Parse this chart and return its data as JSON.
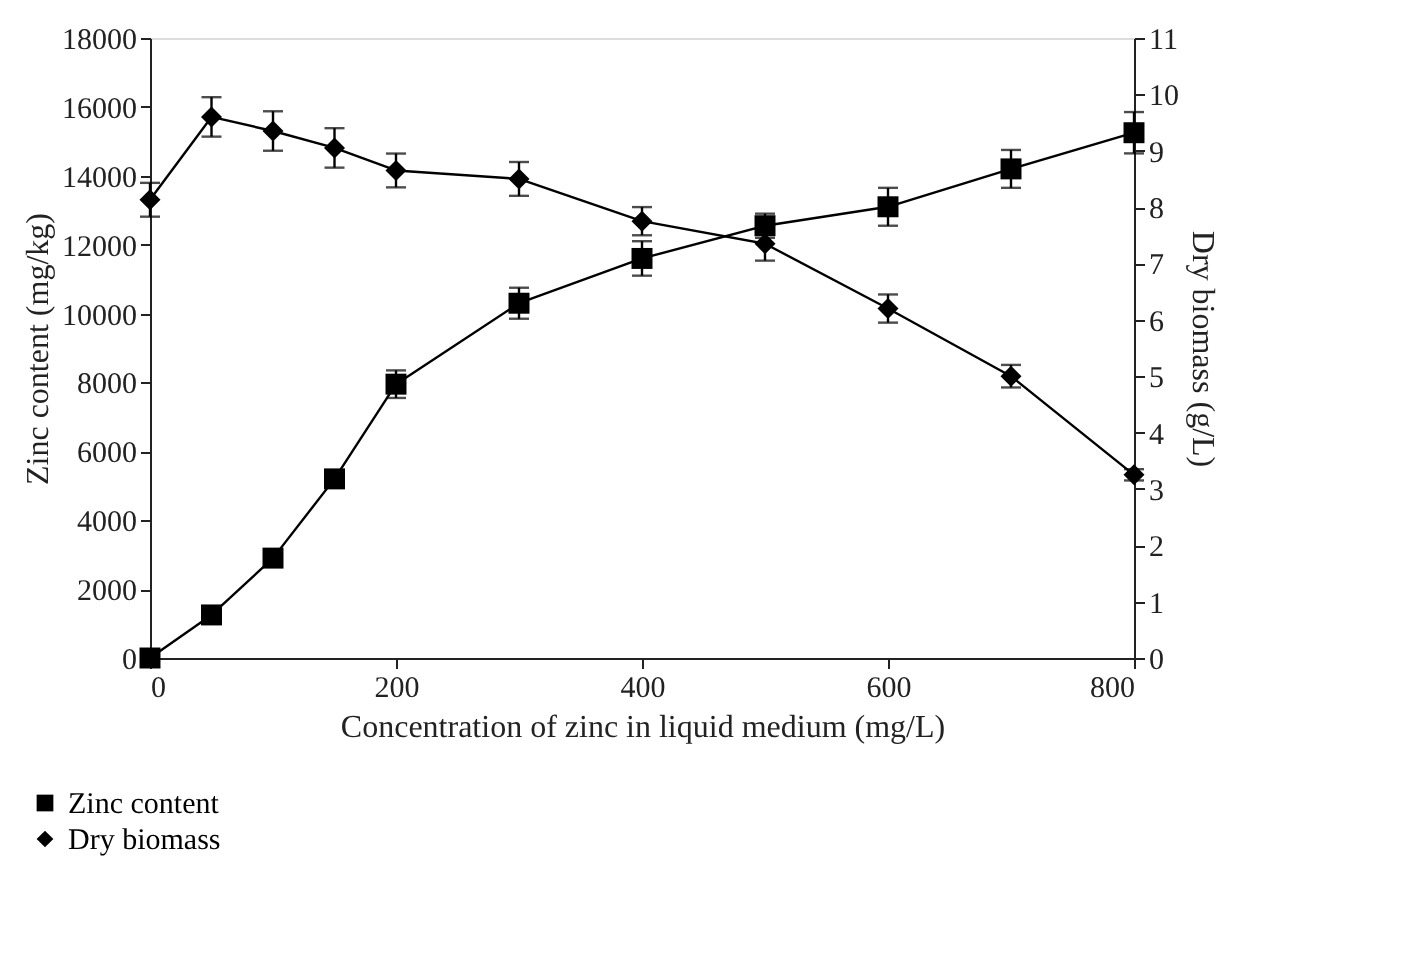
{
  "chart_data": {
    "type": "line",
    "xlabel": "Concentration of zinc in liquid medium (mg/L)",
    "ylabel": "Zinc content (mg/kg)",
    "y2label": "Dry biomass (g/L)",
    "x": [
      0,
      50,
      100,
      150,
      200,
      300,
      400,
      500,
      600,
      700,
      800
    ],
    "xlim": [
      0,
      800
    ],
    "xticks": [
      0,
      200,
      400,
      600,
      800
    ],
    "ylim": [
      0,
      18000
    ],
    "yticks": [
      0,
      2000,
      4000,
      6000,
      8000,
      10000,
      12000,
      14000,
      16000,
      18000
    ],
    "y2lim": [
      0,
      11
    ],
    "y2ticks": [
      0,
      1,
      2,
      3,
      4,
      5,
      6,
      7,
      8,
      9,
      10,
      11
    ],
    "grid": false,
    "legend": "bottom left",
    "line_style": "solid",
    "series": [
      {
        "name": "Zinc content",
        "color": "#000000",
        "marker": "square",
        "values": [
          0,
          1250,
          2900,
          5200,
          7950,
          10300,
          11600,
          12550,
          13100,
          14200,
          15250
        ],
        "errors": [
          null,
          null,
          150,
          200,
          400,
          450,
          500,
          350,
          550,
          550,
          600
        ]
      },
      {
        "name": "Dry biomass",
        "color": "#000000",
        "marker": "diamond",
        "axis": "y2",
        "values": [
          8.13,
          9.6,
          9.35,
          9.05,
          8.65,
          8.5,
          7.75,
          7.35,
          6.2,
          5.0,
          3.25
        ],
        "errors": [
          0.3,
          0.35,
          0.35,
          0.35,
          0.3,
          0.3,
          0.25,
          0.3,
          0.25,
          0.2,
          0.1
        ]
      }
    ]
  }
}
